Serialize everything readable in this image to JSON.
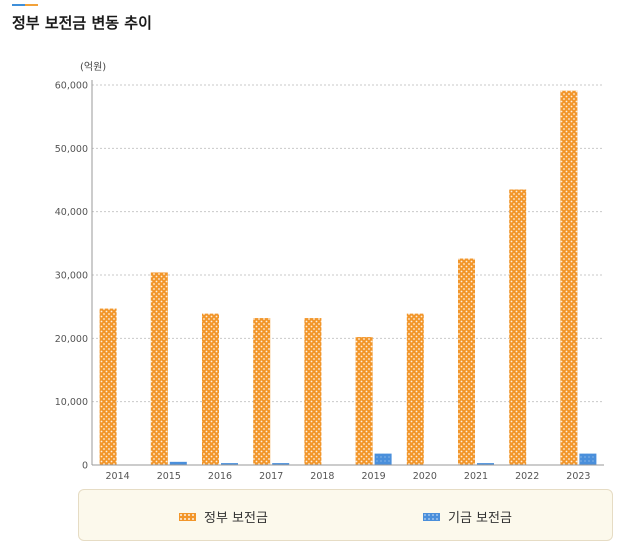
{
  "page": {
    "title": "정부 보전금 변동 추이"
  },
  "chart_data": {
    "type": "bar",
    "title": "정부 보전금 변동 추이",
    "unit_label": "(억원)",
    "xlabel": "",
    "ylabel": "(억원)",
    "ylim": [
      0,
      60000
    ],
    "yticks": [
      0,
      10000,
      20000,
      30000,
      40000,
      50000,
      60000
    ],
    "ytick_labels": [
      "0",
      "10,000",
      "20,000",
      "30,000",
      "40,000",
      "50,000",
      "60,000"
    ],
    "grid": true,
    "legend_position": "bottom",
    "categories": [
      "2014",
      "2015",
      "2016",
      "2017",
      "2018",
      "2019",
      "2020",
      "2021",
      "2022",
      "2023"
    ],
    "series": [
      {
        "name": "정부 보전금",
        "color": "#f2962a",
        "values": [
          24700,
          30400,
          23900,
          23200,
          23200,
          20200,
          23900,
          32600,
          43500,
          59100
        ]
      },
      {
        "name": "기금 보전금",
        "color": "#4a8fdb",
        "values": [
          0,
          500,
          300,
          300,
          0,
          1800,
          0,
          300,
          0,
          1800
        ]
      }
    ]
  }
}
